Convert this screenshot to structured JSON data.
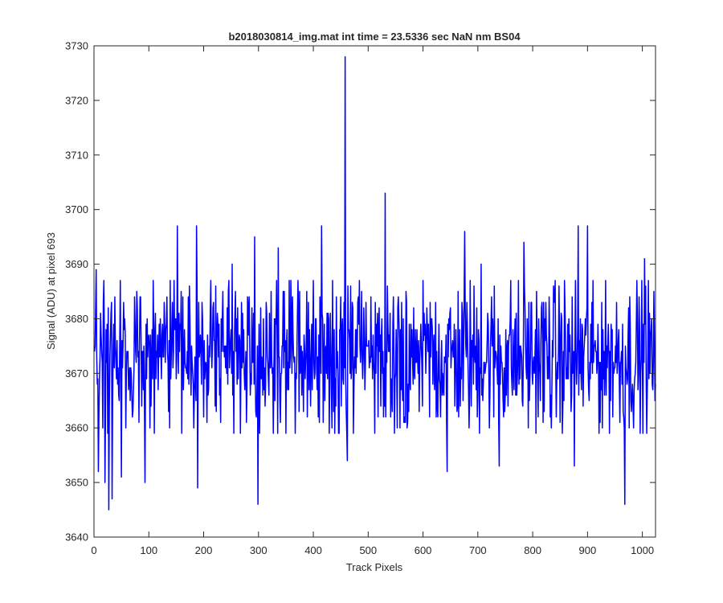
{
  "chart_data": {
    "type": "line",
    "title": "b2018030814_img.mat int time = 23.5336 sec  NaN nm BS04",
    "xlabel": "Track Pixels",
    "ylabel": "Signal (ADU) at pixel 693",
    "xlim": [
      0,
      1024
    ],
    "ylim": [
      3640,
      3730
    ],
    "xticks": [
      0,
      100,
      200,
      300,
      400,
      500,
      600,
      700,
      800,
      900,
      1000
    ],
    "yticks": [
      3640,
      3650,
      3660,
      3670,
      3680,
      3690,
      3700,
      3710,
      3720,
      3730
    ],
    "grid": false,
    "legend": "none",
    "series": [
      {
        "color": "#0000ff",
        "line_width": 1.5,
        "approximate": true,
        "noise_mean": 3673,
        "noise_half_range": 14,
        "n_points": 1024,
        "notable_points": [
          {
            "x": 1,
            "y": 3674
          },
          {
            "x": 4,
            "y": 3689
          },
          {
            "x": 8,
            "y": 3652
          },
          {
            "x": 20,
            "y": 3650
          },
          {
            "x": 27,
            "y": 3645
          },
          {
            "x": 33,
            "y": 3647
          },
          {
            "x": 50,
            "y": 3651
          },
          {
            "x": 93,
            "y": 3650
          },
          {
            "x": 152,
            "y": 3697
          },
          {
            "x": 187,
            "y": 3697
          },
          {
            "x": 189,
            "y": 3649
          },
          {
            "x": 252,
            "y": 3690
          },
          {
            "x": 293,
            "y": 3695
          },
          {
            "x": 299,
            "y": 3646
          },
          {
            "x": 336,
            "y": 3693
          },
          {
            "x": 415,
            "y": 3697
          },
          {
            "x": 458,
            "y": 3728
          },
          {
            "x": 462,
            "y": 3654
          },
          {
            "x": 531,
            "y": 3703
          },
          {
            "x": 644,
            "y": 3652
          },
          {
            "x": 676,
            "y": 3696
          },
          {
            "x": 706,
            "y": 3690
          },
          {
            "x": 739,
            "y": 3653
          },
          {
            "x": 784,
            "y": 3694
          },
          {
            "x": 876,
            "y": 3653
          },
          {
            "x": 883,
            "y": 3697
          },
          {
            "x": 900,
            "y": 3697
          },
          {
            "x": 968,
            "y": 3646
          },
          {
            "x": 1004,
            "y": 3691
          },
          {
            "x": 1024,
            "y": 3668
          }
        ]
      }
    ]
  }
}
